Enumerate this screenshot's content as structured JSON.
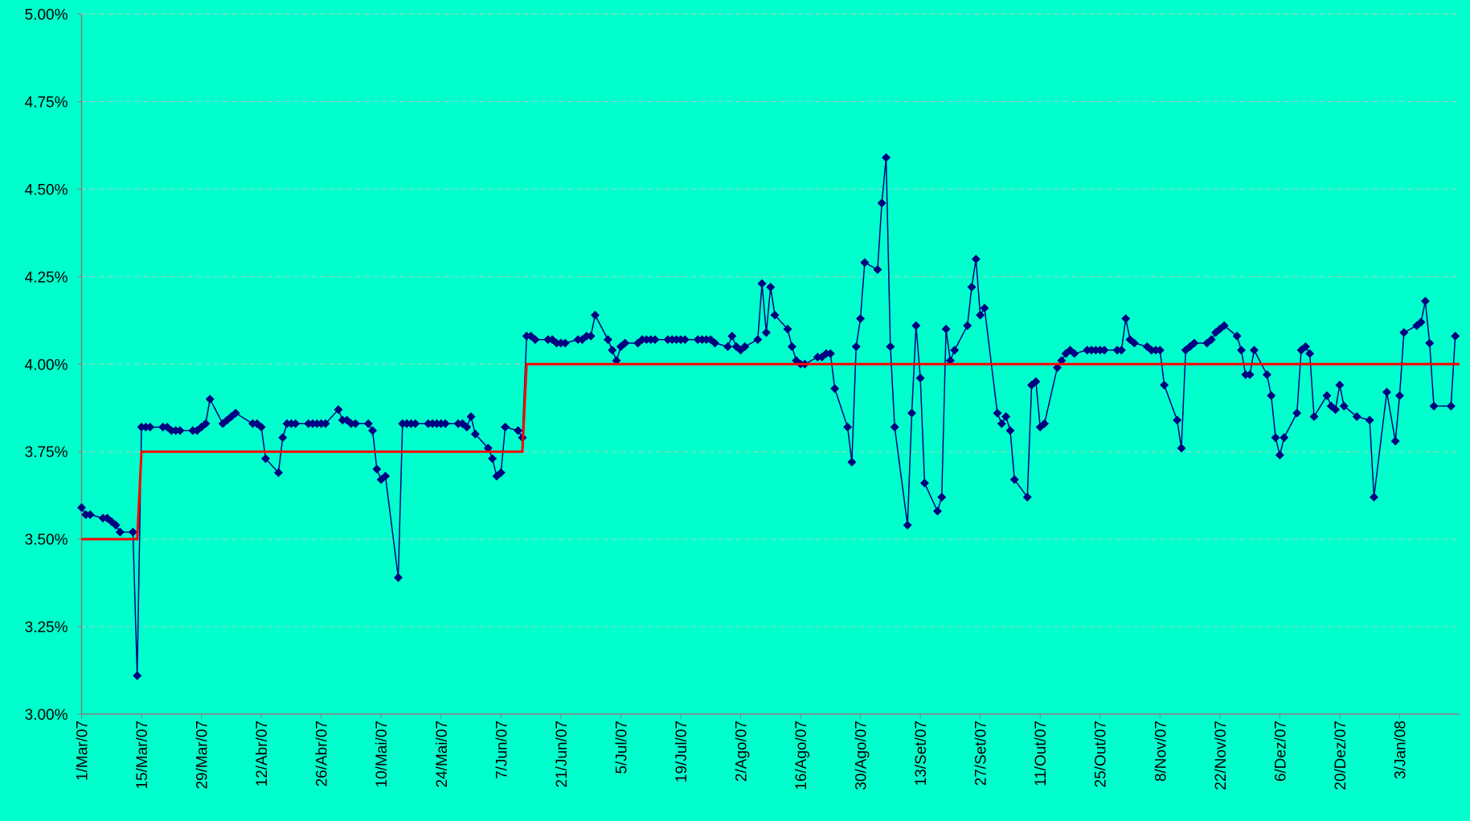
{
  "chart_data": {
    "type": "line",
    "background": "#00ffcc",
    "grid": true,
    "xlim": [
      "2007-03-01",
      "2008-01-17"
    ],
    "xticks": [
      {
        "value": "2007-03-01",
        "label": "1/Mar/07"
      },
      {
        "value": "2007-03-15",
        "label": "15/Mar/07"
      },
      {
        "value": "2007-03-29",
        "label": "29/Mar/07"
      },
      {
        "value": "2007-04-12",
        "label": "12/Abr/07"
      },
      {
        "value": "2007-04-26",
        "label": "26/Abr/07"
      },
      {
        "value": "2007-05-10",
        "label": "10/Mai/07"
      },
      {
        "value": "2007-05-24",
        "label": "24/Mai/07"
      },
      {
        "value": "2007-06-07",
        "label": "7/Jun/07"
      },
      {
        "value": "2007-06-21",
        "label": "21/Jun/07"
      },
      {
        "value": "2007-07-05",
        "label": "5/Jul/07"
      },
      {
        "value": "2007-07-19",
        "label": "19/Jul/07"
      },
      {
        "value": "2007-08-02",
        "label": "2/Ago/07"
      },
      {
        "value": "2007-08-16",
        "label": "16/Ago/07"
      },
      {
        "value": "2007-08-30",
        "label": "30/Ago/07"
      },
      {
        "value": "2007-09-13",
        "label": "13/Set/07"
      },
      {
        "value": "2007-09-27",
        "label": "27/Set/07"
      },
      {
        "value": "2007-10-11",
        "label": "11/Out/07"
      },
      {
        "value": "2007-10-25",
        "label": "25/Out/07"
      },
      {
        "value": "2007-11-08",
        "label": "8/Nov/07"
      },
      {
        "value": "2007-11-22",
        "label": "22/Nov/07"
      },
      {
        "value": "2007-12-06",
        "label": "6/Dez/07"
      },
      {
        "value": "2007-12-20",
        "label": "20/Dez/07"
      },
      {
        "value": "2008-01-03",
        "label": "3/Jan/08"
      }
    ],
    "ylim": [
      3,
      5
    ],
    "yticks": [
      {
        "value": 3,
        "label": "3.00%"
      },
      {
        "value": 3.25,
        "label": "3.25%"
      },
      {
        "value": 3.5,
        "label": "3.50%"
      },
      {
        "value": 3.75,
        "label": "3.75%"
      },
      {
        "value": 4,
        "label": "4.00%"
      },
      {
        "value": 4.25,
        "label": "4.25%"
      },
      {
        "value": 4.5,
        "label": "4.50%"
      },
      {
        "value": 4.75,
        "label": "4.75%"
      },
      {
        "value": 5,
        "label": "5.00%"
      }
    ],
    "series": [
      {
        "color": "#000080",
        "markers": true,
        "x": [
          "2007-03-01",
          "2007-03-02",
          "2007-03-03",
          "2007-03-06",
          "2007-03-07",
          "2007-03-08",
          "2007-03-09",
          "2007-03-10",
          "2007-03-13",
          "2007-03-14",
          "2007-03-15",
          "2007-03-16",
          "2007-03-17",
          "2007-03-20",
          "2007-03-21",
          "2007-03-22",
          "2007-03-23",
          "2007-03-24",
          "2007-03-27",
          "2007-03-28",
          "2007-03-29",
          "2007-03-30",
          "2007-03-31",
          "2007-04-03",
          "2007-04-04",
          "2007-04-05",
          "2007-04-06",
          "2007-04-10",
          "2007-04-11",
          "2007-04-12",
          "2007-04-13",
          "2007-04-16",
          "2007-04-17",
          "2007-04-18",
          "2007-04-19",
          "2007-04-20",
          "2007-04-23",
          "2007-04-24",
          "2007-04-25",
          "2007-04-26",
          "2007-04-27",
          "2007-04-30",
          "2007-05-01",
          "2007-05-02",
          "2007-05-03",
          "2007-05-04",
          "2007-05-07",
          "2007-05-08",
          "2007-05-09",
          "2007-05-10",
          "2007-05-11",
          "2007-05-14",
          "2007-05-15",
          "2007-05-16",
          "2007-05-17",
          "2007-05-18",
          "2007-05-21",
          "2007-05-22",
          "2007-05-23",
          "2007-05-24",
          "2007-05-25",
          "2007-05-28",
          "2007-05-29",
          "2007-05-30",
          "2007-05-31",
          "2007-06-01",
          "2007-06-04",
          "2007-06-05",
          "2007-06-06",
          "2007-06-07",
          "2007-06-08",
          "2007-06-11",
          "2007-06-12",
          "2007-06-13",
          "2007-06-14",
          "2007-06-15",
          "2007-06-18",
          "2007-06-19",
          "2007-06-20",
          "2007-06-21",
          "2007-06-22",
          "2007-06-25",
          "2007-06-26",
          "2007-06-27",
          "2007-06-28",
          "2007-06-29",
          "2007-07-02",
          "2007-07-03",
          "2007-07-04",
          "2007-07-05",
          "2007-07-06",
          "2007-07-09",
          "2007-07-10",
          "2007-07-11",
          "2007-07-12",
          "2007-07-13",
          "2007-07-16",
          "2007-07-17",
          "2007-07-18",
          "2007-07-19",
          "2007-07-20",
          "2007-07-23",
          "2007-07-24",
          "2007-07-25",
          "2007-07-26",
          "2007-07-27",
          "2007-07-30",
          "2007-07-31",
          "2007-08-01",
          "2007-08-02",
          "2007-08-03",
          "2007-08-06",
          "2007-08-07",
          "2007-08-08",
          "2007-08-09",
          "2007-08-10",
          "2007-08-13",
          "2007-08-14",
          "2007-08-15",
          "2007-08-16",
          "2007-08-17",
          "2007-08-20",
          "2007-08-21",
          "2007-08-22",
          "2007-08-23",
          "2007-08-24",
          "2007-08-27",
          "2007-08-28",
          "2007-08-29",
          "2007-08-30",
          "2007-08-31",
          "2007-09-03",
          "2007-09-04",
          "2007-09-05",
          "2007-09-06",
          "2007-09-07",
          "2007-09-10",
          "2007-09-11",
          "2007-09-12",
          "2007-09-13",
          "2007-09-14",
          "2007-09-17",
          "2007-09-18",
          "2007-09-19",
          "2007-09-20",
          "2007-09-21",
          "2007-09-24",
          "2007-09-25",
          "2007-09-26",
          "2007-09-27",
          "2007-09-28",
          "2007-10-01",
          "2007-10-02",
          "2007-10-03",
          "2007-10-04",
          "2007-10-05",
          "2007-10-08",
          "2007-10-09",
          "2007-10-10",
          "2007-10-11",
          "2007-10-12",
          "2007-10-15",
          "2007-10-16",
          "2007-10-17",
          "2007-10-18",
          "2007-10-19",
          "2007-10-22",
          "2007-10-23",
          "2007-10-24",
          "2007-10-25",
          "2007-10-26",
          "2007-10-29",
          "2007-10-30",
          "2007-10-31",
          "2007-11-01",
          "2007-11-02",
          "2007-11-05",
          "2007-11-06",
          "2007-11-07",
          "2007-11-08",
          "2007-11-09",
          "2007-11-12",
          "2007-11-13",
          "2007-11-14",
          "2007-11-15",
          "2007-11-16",
          "2007-11-19",
          "2007-11-20",
          "2007-11-21",
          "2007-11-22",
          "2007-11-23",
          "2007-11-26",
          "2007-11-27",
          "2007-11-28",
          "2007-11-29",
          "2007-11-30",
          "2007-12-03",
          "2007-12-04",
          "2007-12-05",
          "2007-12-06",
          "2007-12-07",
          "2007-12-10",
          "2007-12-11",
          "2007-12-12",
          "2007-12-13",
          "2007-12-14",
          "2007-12-17",
          "2007-12-18",
          "2007-12-19",
          "2007-12-20",
          "2007-12-21",
          "2007-12-24",
          "2007-12-27",
          "2007-12-28",
          "2007-12-31",
          "2008-01-02",
          "2008-01-03",
          "2008-01-04",
          "2008-01-07",
          "2008-01-08",
          "2008-01-09",
          "2008-01-10",
          "2008-01-11",
          "2008-01-15",
          "2008-01-16"
        ],
        "values": [
          3.59,
          3.57,
          3.57,
          3.56,
          3.56,
          3.55,
          3.54,
          3.52,
          3.52,
          3.11,
          3.82,
          3.82,
          3.82,
          3.82,
          3.82,
          3.81,
          3.81,
          3.81,
          3.81,
          3.81,
          3.82,
          3.83,
          3.9,
          3.83,
          3.84,
          3.85,
          3.86,
          3.83,
          3.83,
          3.82,
          3.73,
          3.69,
          3.79,
          3.83,
          3.83,
          3.83,
          3.83,
          3.83,
          3.83,
          3.83,
          3.83,
          3.87,
          3.84,
          3.84,
          3.83,
          3.83,
          3.83,
          3.81,
          3.7,
          3.67,
          3.68,
          3.39,
          3.83,
          3.83,
          3.83,
          3.83,
          3.83,
          3.83,
          3.83,
          3.83,
          3.83,
          3.83,
          3.83,
          3.82,
          3.85,
          3.8,
          3.76,
          3.73,
          3.68,
          3.69,
          3.82,
          3.81,
          3.79,
          4.08,
          4.08,
          4.07,
          4.07,
          4.07,
          4.06,
          4.06,
          4.06,
          4.07,
          4.07,
          4.08,
          4.08,
          4.14,
          4.07,
          4.04,
          4.01,
          4.05,
          4.06,
          4.06,
          4.07,
          4.07,
          4.07,
          4.07,
          4.07,
          4.07,
          4.07,
          4.07,
          4.07,
          4.07,
          4.07,
          4.07,
          4.07,
          4.06,
          4.05,
          4.08,
          4.05,
          4.04,
          4.05,
          4.07,
          4.23,
          4.09,
          4.22,
          4.14,
          4.1,
          4.05,
          4.01,
          4.0,
          4.0,
          4.02,
          4.02,
          4.03,
          4.03,
          3.93,
          3.82,
          3.72,
          4.05,
          4.13,
          4.29,
          4.27,
          4.46,
          4.59,
          4.05,
          3.82,
          3.54,
          3.86,
          4.11,
          3.96,
          3.66,
          3.58,
          3.62,
          4.1,
          4.01,
          4.04,
          4.11,
          4.22,
          4.3,
          4.14,
          4.16,
          3.86,
          3.83,
          3.85,
          3.81,
          3.67,
          3.62,
          3.94,
          3.95,
          3.82,
          3.83,
          3.99,
          4.01,
          4.03,
          4.04,
          4.03,
          4.04,
          4.04,
          4.04,
          4.04,
          4.04,
          4.04,
          4.04,
          4.13,
          4.07,
          4.06,
          4.05,
          4.04,
          4.04,
          4.04,
          3.94,
          3.84,
          3.76,
          4.04,
          4.05,
          4.06,
          4.06,
          4.07,
          4.09,
          4.1,
          4.11,
          4.08,
          4.04,
          3.97,
          3.97,
          4.04,
          3.97,
          3.91,
          3.79,
          3.74,
          3.79,
          3.86,
          4.04,
          4.05,
          4.03,
          3.85,
          3.91,
          3.88,
          3.87,
          3.94,
          3.88,
          3.85,
          3.84,
          3.62,
          3.92,
          3.78,
          3.91,
          4.09,
          4.11,
          4.12,
          4.18,
          4.06,
          3.88,
          3.88,
          4.08
        ]
      },
      {
        "color": "#ff0000",
        "markers": false,
        "x": [
          "2007-03-01",
          "2007-03-14",
          "2007-03-15",
          "2007-06-12",
          "2007-06-13",
          "2008-01-17"
        ],
        "values": [
          3.5,
          3.5,
          3.75,
          3.75,
          4,
          4
        ]
      }
    ]
  }
}
